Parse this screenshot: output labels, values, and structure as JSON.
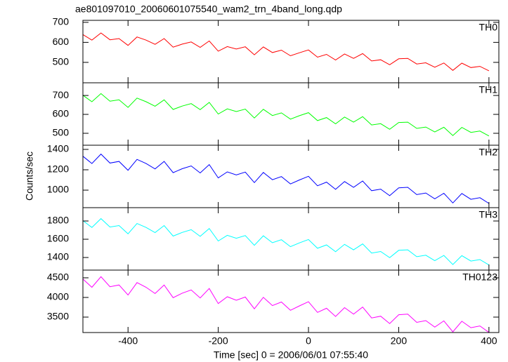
{
  "chart_data": {
    "type": "line",
    "title": "ae801097010_20060601075540_wam2_trn_4band_long.qdp",
    "xlabel": "Time [sec] 0 = 2006/06/01 07:55:40",
    "ylabel": "Counts/sec",
    "xlim": [
      -500,
      422
    ],
    "xticks": [
      -400,
      -200,
      0,
      200,
      400
    ],
    "x": [
      -500,
      -480,
      -460,
      -440,
      -420,
      -400,
      -380,
      -360,
      -340,
      -320,
      -300,
      -280,
      -260,
      -240,
      -220,
      -200,
      -180,
      -160,
      -140,
      -120,
      -100,
      -80,
      -60,
      -40,
      -20,
      0,
      20,
      40,
      60,
      80,
      100,
      120,
      140,
      160,
      180,
      200,
      220,
      240,
      260,
      280,
      300,
      320,
      340,
      360,
      380,
      400
    ],
    "series": [
      {
        "name": "TH0",
        "color": "#ff0000",
        "ylim": [
          398,
          710
        ],
        "yticks": [
          500,
          600,
          700
        ],
        "values": [
          639,
          611,
          647,
          613,
          619,
          585,
          627,
          611,
          590,
          619,
          576,
          591,
          602,
          575,
          607,
          556,
          579,
          567,
          578,
          538,
          577,
          549,
          561,
          533,
          548,
          562,
          526,
          540,
          512,
          542,
          520,
          544,
          507,
          513,
          488,
          518,
          520,
          492,
          498,
          476,
          497,
          460,
          496,
          474,
          480,
          458
        ]
      },
      {
        "name": "TH1",
        "color": "#00ff00",
        "ylim": [
          437,
          767
        ],
        "yticks": [
          500,
          600,
          700
        ],
        "values": [
          701,
          667,
          710,
          670,
          677,
          637,
          686,
          667,
          643,
          677,
          626,
          644,
          657,
          625,
          663,
          602,
          629,
          615,
          628,
          581,
          627,
          594,
          608,
          575,
          593,
          609,
          567,
          583,
          550,
          586,
          559,
          588,
          544,
          551,
          521,
          557,
          559,
          526,
          533,
          507,
          532,
          488,
          531,
          505,
          512,
          486
        ]
      },
      {
        "name": "TH2",
        "color": "#0000ff",
        "ylim": [
          828,
          1441
        ],
        "yticks": [
          1000,
          1200,
          1400
        ],
        "values": [
          1333,
          1261,
          1354,
          1266,
          1282,
          1195,
          1302,
          1261,
          1208,
          1282,
          1172,
          1210,
          1238,
          1169,
          1251,
          1120,
          1179,
          1149,
          1177,
          1074,
          1174,
          1102,
          1133,
          1061,
          1100,
          1136,
          1043,
          1079,
          1008,
          1084,
          1028,
          1090,
          995,
          1010,
          946,
          1023,
          1028,
          956,
          972,
          915,
          969,
          874,
          967,
          910,
          926,
          869
        ]
      },
      {
        "name": "TH3",
        "color": "#00ffff",
        "ylim": [
          1262,
          1946
        ],
        "yticks": [
          1400,
          1600,
          1800
        ],
        "values": [
          1804,
          1729,
          1826,
          1734,
          1750,
          1659,
          1772,
          1729,
          1673,
          1750,
          1635,
          1675,
          1705,
          1632,
          1718,
          1581,
          1643,
          1611,
          1640,
          1533,
          1638,
          1562,
          1595,
          1519,
          1560,
          1597,
          1501,
          1538,
          1463,
          1544,
          1484,
          1549,
          1449,
          1466,
          1398,
          1479,
          1484,
          1409,
          1425,
          1366,
          1423,
          1323,
          1420,
          1361,
          1377,
          1318
        ]
      },
      {
        "name": "TH0123",
        "color": "#ff00ff",
        "ylim": [
          3107,
          4696
        ],
        "yticks": [
          3500,
          4000,
          4500
        ],
        "values": [
          4468,
          4258,
          4528,
          4273,
          4318,
          4063,
          4378,
          4258,
          4100,
          4318,
          3995,
          4108,
          4190,
          3988,
          4228,
          3845,
          4018,
          3928,
          4010,
          3710,
          4003,
          3793,
          3883,
          3673,
          3785,
          3890,
          3620,
          3725,
          3515,
          3740,
          3575,
          3755,
          3478,
          3523,
          3335,
          3560,
          3575,
          3365,
          3410,
          3245,
          3403,
          3125,
          3395,
          3230,
          3275,
          3110
        ]
      }
    ]
  }
}
